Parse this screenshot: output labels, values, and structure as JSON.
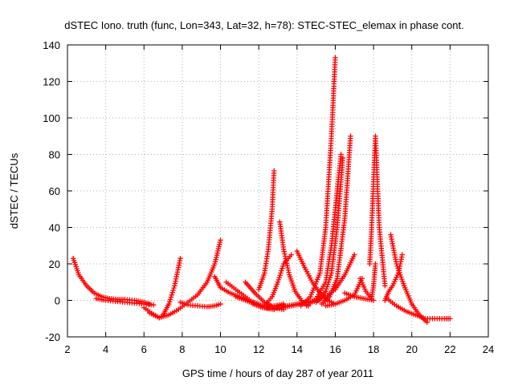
{
  "chart_data": {
    "type": "scatter",
    "title": "dSTEC Iono. truth (func, Lon=343, Lat=32, h=78): STEC-STEC_elemax in phase cont.",
    "xlabel": "GPS time / hours of day 287 of year 2011",
    "ylabel": "dSTEC  / TECUs",
    "xlim": [
      2,
      24
    ],
    "ylim": [
      -20,
      140
    ],
    "xticks": [
      2,
      4,
      6,
      8,
      10,
      12,
      14,
      16,
      18,
      20,
      22,
      24
    ],
    "yticks": [
      -20,
      0,
      20,
      40,
      60,
      80,
      100,
      120,
      140
    ],
    "grid": true,
    "marker": "plus",
    "color": "#ff0000",
    "series": [
      {
        "x": [
          2.3,
          2.6,
          3.0,
          3.4,
          3.8,
          4.2,
          4.6,
          5.0,
          5.5,
          6.0,
          6.3
        ],
        "y": [
          23,
          14,
          8,
          4,
          2,
          1,
          0.5,
          0.5,
          0,
          -1,
          -2
        ]
      },
      {
        "x": [
          3.5,
          4.0,
          4.5,
          5.0,
          5.5,
          6.0,
          6.5
        ],
        "y": [
          1,
          0,
          -0.5,
          -1,
          -1.5,
          -2,
          -2.5
        ]
      },
      {
        "x": [
          6.0,
          6.4,
          6.8,
          7.0,
          7.3,
          7.6,
          7.9
        ],
        "y": [
          -4,
          -7,
          -9.5,
          -8,
          -2,
          8,
          23
        ]
      },
      {
        "x": [
          6.3,
          6.8,
          7.3,
          7.8,
          8.3,
          8.8,
          9.3,
          9.7,
          10.0
        ],
        "y": [
          -7,
          -9.5,
          -8,
          -5,
          -1,
          3,
          10,
          20,
          33
        ]
      },
      {
        "x": [
          7.9,
          8.3,
          8.8,
          9.3,
          9.7,
          10.0
        ],
        "y": [
          -1,
          -2.5,
          -3,
          -3.5,
          -3,
          -2
        ]
      },
      {
        "x": [
          9.7,
          10.0,
          10.5,
          11.0,
          11.5,
          12.0
        ],
        "y": [
          13,
          7,
          4,
          2,
          0,
          -2
        ]
      },
      {
        "x": [
          10.3,
          10.8,
          11.3,
          11.8,
          12.3,
          12.8
        ],
        "y": [
          10,
          6,
          2,
          -2,
          -4,
          -5
        ]
      },
      {
        "x": [
          10.8,
          11.3,
          11.8,
          12.3,
          12.8,
          13.3
        ],
        "y": [
          2,
          0,
          -2,
          -3,
          -3,
          -2
        ]
      },
      {
        "x": [
          11.3,
          11.8,
          12.3,
          12.8,
          13.3
        ],
        "y": [
          10,
          4,
          -1,
          -4,
          -5
        ]
      },
      {
        "x": [
          12.0,
          12.3,
          12.5,
          12.7,
          12.8
        ],
        "y": [
          6,
          15,
          28,
          50,
          71
        ]
      },
      {
        "x": [
          11.7,
          12.2,
          12.7,
          13.2,
          13.7,
          14.2,
          14.7,
          15.2
        ],
        "y": [
          -2,
          -4,
          -4.5,
          -4,
          -3,
          -2,
          -1,
          0
        ]
      },
      {
        "x": [
          13.1,
          13.3,
          13.6,
          13.9,
          14.3,
          14.6
        ],
        "y": [
          43,
          28,
          14,
          5,
          -1,
          -3
        ]
      },
      {
        "x": [
          12.3,
          12.7,
          13.0,
          13.3,
          13.7
        ],
        "y": [
          -3,
          2,
          10,
          20,
          25
        ]
      },
      {
        "x": [
          13.0,
          13.5,
          14.0,
          14.5,
          15.0,
          15.5,
          16.0,
          16.5,
          17.0
        ],
        "y": [
          -3,
          -3,
          -2,
          -1,
          0,
          2,
          6,
          14,
          25
        ]
      },
      {
        "x": [
          14.0,
          14.4,
          14.8,
          15.2,
          15.6,
          16.0
        ],
        "y": [
          27,
          18,
          10,
          4,
          0,
          -2
        ]
      },
      {
        "x": [
          14.2,
          14.7,
          15.2,
          15.5,
          15.8,
          16.0
        ],
        "y": [
          -3,
          2,
          15,
          40,
          90,
          133
        ]
      },
      {
        "x": [
          14.5,
          15.0,
          15.5,
          15.8,
          16.1,
          16.3
        ],
        "y": [
          -3,
          1,
          10,
          30,
          60,
          80
        ]
      },
      {
        "x": [
          15.0,
          15.5,
          15.8,
          16.1,
          16.4
        ],
        "y": [
          -1,
          5,
          15,
          40,
          78
        ]
      },
      {
        "x": [
          15.3,
          15.7,
          16.1,
          16.5,
          16.8
        ],
        "y": [
          -2,
          2,
          12,
          45,
          90
        ]
      },
      {
        "x": [
          15.5,
          16.0,
          16.5,
          17.0,
          17.4
        ],
        "y": [
          -3,
          -2,
          0,
          3,
          12
        ]
      },
      {
        "x": [
          16.5,
          17.0,
          17.5,
          18.0
        ],
        "y": [
          4,
          2,
          1,
          0
        ]
      },
      {
        "x": [
          17.3,
          17.6,
          17.9,
          18.0,
          18.1
        ],
        "y": [
          12,
          5,
          1,
          8,
          20
        ]
      },
      {
        "x": [
          17.8,
          17.9,
          18.0,
          18.1,
          18.3,
          18.6
        ],
        "y": [
          20,
          40,
          65,
          90,
          40,
          8
        ]
      },
      {
        "x": [
          18.6,
          18.8,
          19.0,
          19.3,
          19.5
        ],
        "y": [
          0,
          5,
          8,
          15,
          25
        ]
      },
      {
        "x": [
          18.9,
          19.2,
          19.6,
          20.0,
          20.4,
          20.8
        ],
        "y": [
          36,
          20,
          8,
          -2,
          -8,
          -12
        ]
      },
      {
        "x": [
          18.7,
          19.2,
          19.7,
          20.2,
          20.7,
          21.2,
          21.7,
          22.0
        ],
        "y": [
          1,
          -3,
          -6,
          -8,
          -10,
          -10,
          -10,
          -10
        ]
      }
    ]
  }
}
